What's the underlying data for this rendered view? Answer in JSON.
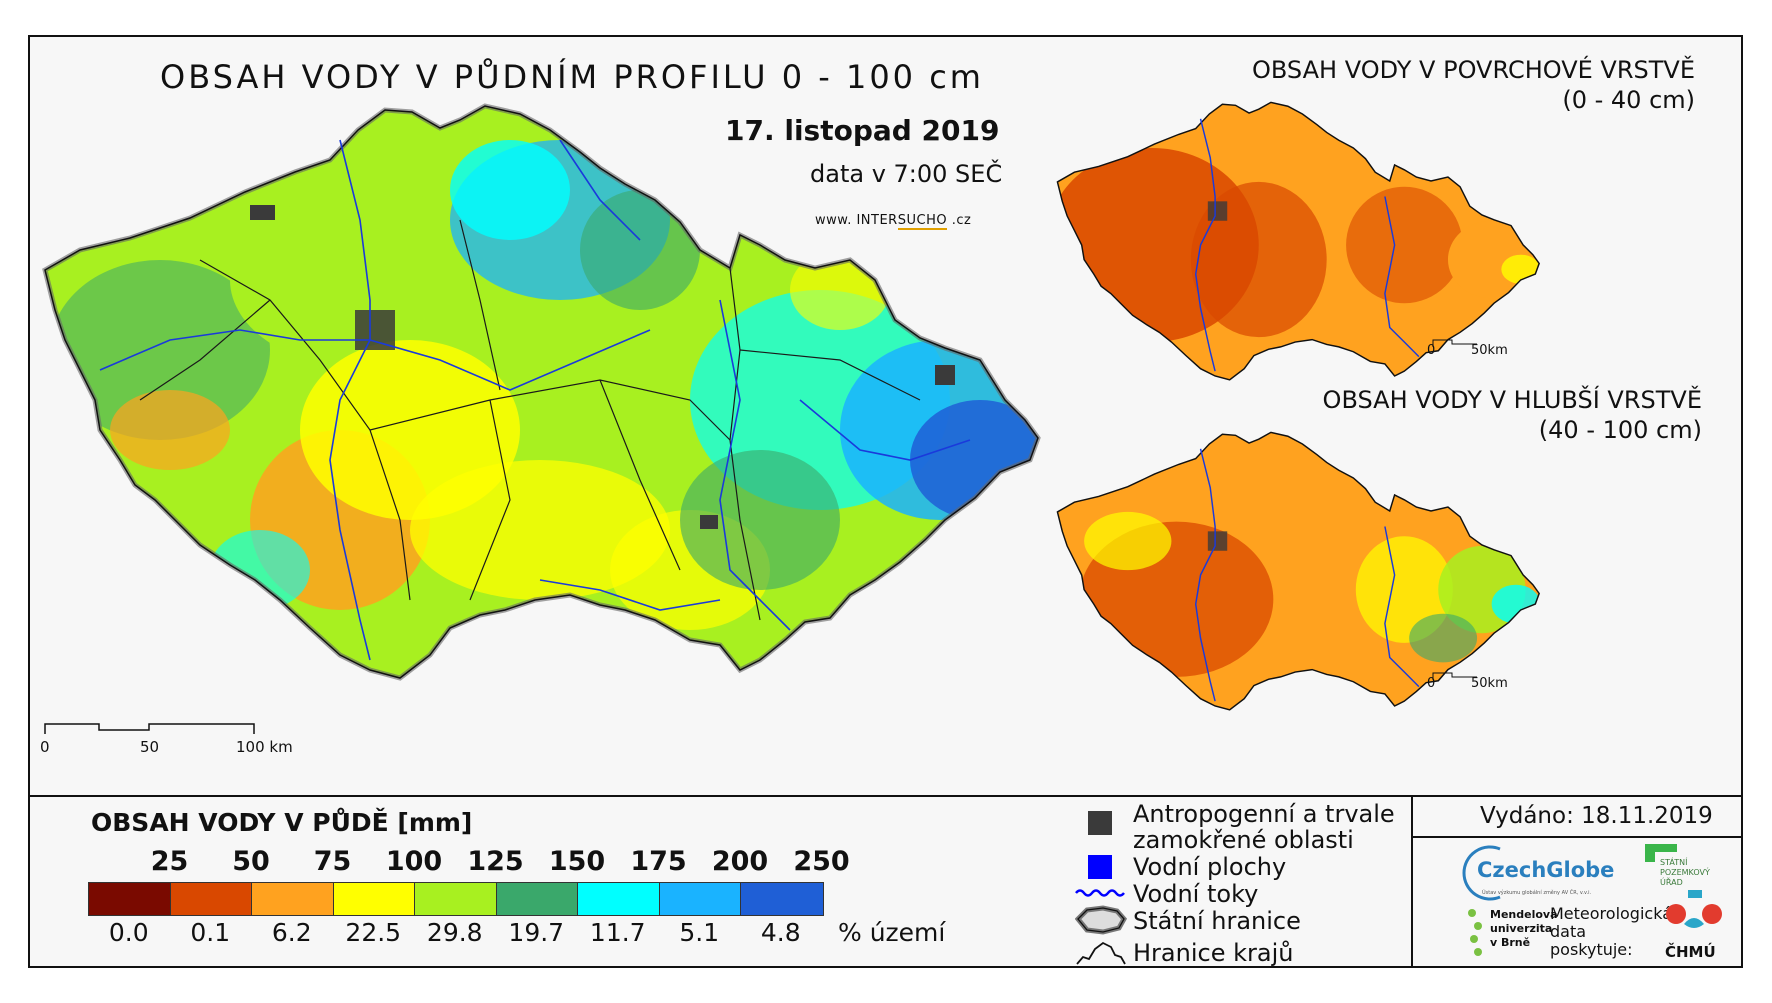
{
  "header": {
    "title": "OBSAH VODY V PŮDNÍM PROFILU 0 - 100 cm",
    "date": "17. listopad 2019",
    "data_time": "data v 7:00 SEČ",
    "website_prefix": "www. ",
    "website_brand_a": "INTER",
    "website_brand_b": "SUCHO",
    "website_suffix": " .cz"
  },
  "main_map": {
    "scale_labels": [
      "0",
      "50",
      "100 km"
    ]
  },
  "side_maps": [
    {
      "title": "OBSAH VODY V POVRCHOVÉ VRSTVĚ",
      "subtitle": "(0 - 40 cm)",
      "scale_labels": [
        "0",
        "50km"
      ]
    },
    {
      "title": "OBSAH VODY V HLUBŠÍ VRSTVĚ",
      "subtitle": "(40 - 100 cm)",
      "scale_labels": [
        "0",
        "50km"
      ]
    }
  ],
  "legend": {
    "title": "OBSAH VODY V PŮDĚ [mm]",
    "thresholds": [
      "25",
      "50",
      "75",
      "100",
      "125",
      "150",
      "175",
      "200",
      "250"
    ],
    "colors": [
      "#7a0a00",
      "#d94800",
      "#ffa21f",
      "#ffff00",
      "#a8f020",
      "#3aa86b",
      "#00ffff",
      "#1ab3ff",
      "#1f5fd6"
    ],
    "percent_territory": [
      "0.0",
      "0.1",
      "6.2",
      "22.5",
      "29.8",
      "19.7",
      "11.7",
      "5.1",
      "4.8"
    ],
    "percent_unit": "% území"
  },
  "symbols": [
    {
      "icon": "gray-square-icon",
      "label_line1": "Antropogenní a trvale",
      "label_line2": "zamokřené oblasti",
      "color": "#3a3a3a"
    },
    {
      "icon": "blue-square-icon",
      "label_line1": "Vodní plochy",
      "color": "#0000ff"
    },
    {
      "icon": "river-line-icon",
      "label_line1": "Vodní toky",
      "color": "#0000ff"
    },
    {
      "icon": "state-border-icon",
      "label_line1": "Státní hranice"
    },
    {
      "icon": "region-border-icon",
      "label_line1": "Hranice krajů"
    }
  ],
  "footer": {
    "issued": "Vydáno: 18.11.2019",
    "czechglobe": "CzechGlobe",
    "czechglobe_sub": "Ústav výzkumu globální změny AV ČR, v.v.i.",
    "spu_line1": "STÁTNÍ",
    "spu_line2": "POZEMKOVÝ",
    "spu_line3": "ÚŘAD",
    "mendel_line1": "Mendelova",
    "mendel_line2": "univerzita",
    "mendel_line3": "v Brně",
    "meteo_line1": "Meteorologická",
    "meteo_line2": "data",
    "meteo_line3": "poskytuje:",
    "chmu": "ČHMÚ"
  }
}
